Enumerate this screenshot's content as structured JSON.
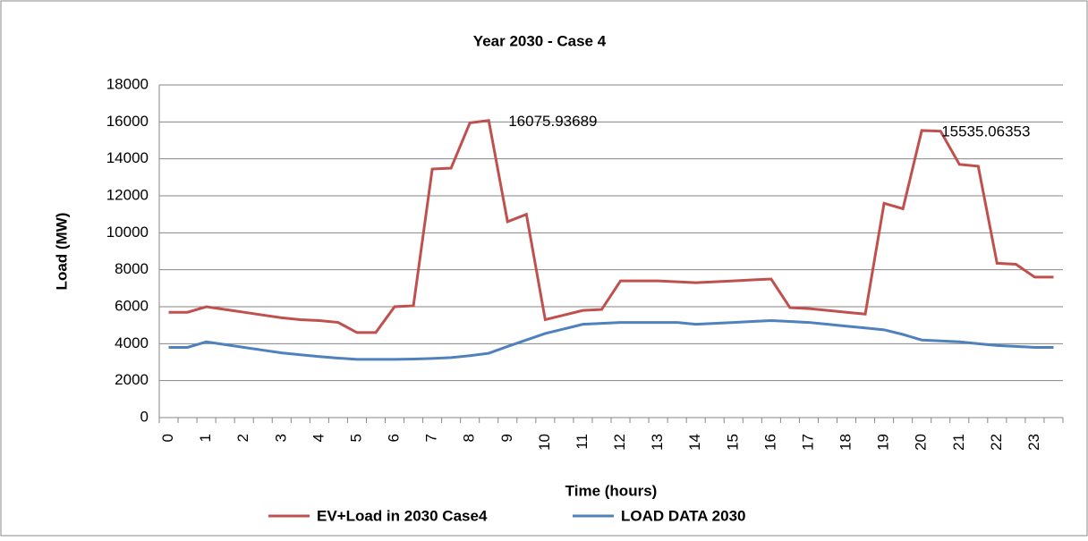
{
  "chart_data": {
    "type": "line",
    "title": "Year 2030 - Case 4",
    "x_label": "Time (hours)",
    "y_label": "Load (MW)",
    "categories": [
      "0",
      null,
      "1",
      null,
      "2",
      null,
      "3",
      null,
      "4",
      null,
      "5",
      null,
      "6",
      null,
      "7",
      null,
      "8",
      null,
      "9",
      null,
      "10",
      null,
      "11",
      null,
      "12",
      null,
      "13",
      null,
      "14",
      null,
      "15",
      null,
      "16",
      null,
      "17",
      null,
      "18",
      null,
      "19",
      null,
      "20",
      null,
      "21",
      null,
      "22",
      null,
      "23",
      null
    ],
    "series": [
      {
        "name": "EV+Load in 2030 Case4",
        "color": "#c0504d",
        "labeled_points": [
          17,
          40
        ],
        "values": [
          5700,
          5700,
          6000,
          5850,
          5700,
          5550,
          5400,
          5300,
          5250,
          5150,
          4600,
          4600,
          6000,
          6050,
          13450,
          13500,
          15950,
          16075.93689,
          10600,
          11000,
          5300,
          5550,
          5800,
          5850,
          7400,
          7400,
          7400,
          7350,
          7300,
          7350,
          7400,
          7450,
          7500,
          5950,
          5900,
          5800,
          5700,
          5600,
          11600,
          11300,
          15535.06353,
          15500,
          13700,
          13600,
          8350,
          8300,
          7600,
          7600
        ]
      },
      {
        "name": "LOAD DATA 2030",
        "color": "#4f81bd",
        "values": [
          3800,
          3800,
          4100,
          3950,
          3800,
          3650,
          3500,
          3400,
          3300,
          3220,
          3150,
          3150,
          3150,
          3170,
          3200,
          3250,
          3350,
          3480,
          3850,
          4200,
          4550,
          4800,
          5050,
          5100,
          5150,
          5150,
          5150,
          5150,
          5050,
          5100,
          5150,
          5200,
          5250,
          5200,
          5150,
          5050,
          4950,
          4850,
          4750,
          4500,
          4200,
          4150,
          4100,
          4000,
          3900,
          3850,
          3800,
          3800
        ]
      }
    ],
    "ylim": [
      0,
      18000
    ],
    "yticks": [
      0,
      2000,
      4000,
      6000,
      8000,
      10000,
      12000,
      14000,
      16000,
      18000
    ],
    "grid": true
  }
}
